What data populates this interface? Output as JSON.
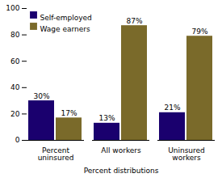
{
  "chart_data": {
    "type": "bar",
    "xlabel": "Percent distributions",
    "categories": [
      "Percent\nuninsured",
      "All workers",
      "Uninsured\nworkers"
    ],
    "series": [
      {
        "name": "Self-employed",
        "color": "#1a006e",
        "values": [
          30,
          13,
          21
        ],
        "value_labels": [
          "30%",
          "13%",
          "21%"
        ]
      },
      {
        "name": "Wage earners",
        "color": "#7a6a2a",
        "values": [
          17,
          87,
          79
        ],
        "value_labels": [
          "17%",
          "87%",
          "79%"
        ]
      }
    ],
    "ylim": [
      0,
      100
    ],
    "yticks": [
      0,
      20,
      40,
      60,
      80,
      100
    ],
    "legend": "upper left",
    "data_labels": true,
    "grid": false
  }
}
